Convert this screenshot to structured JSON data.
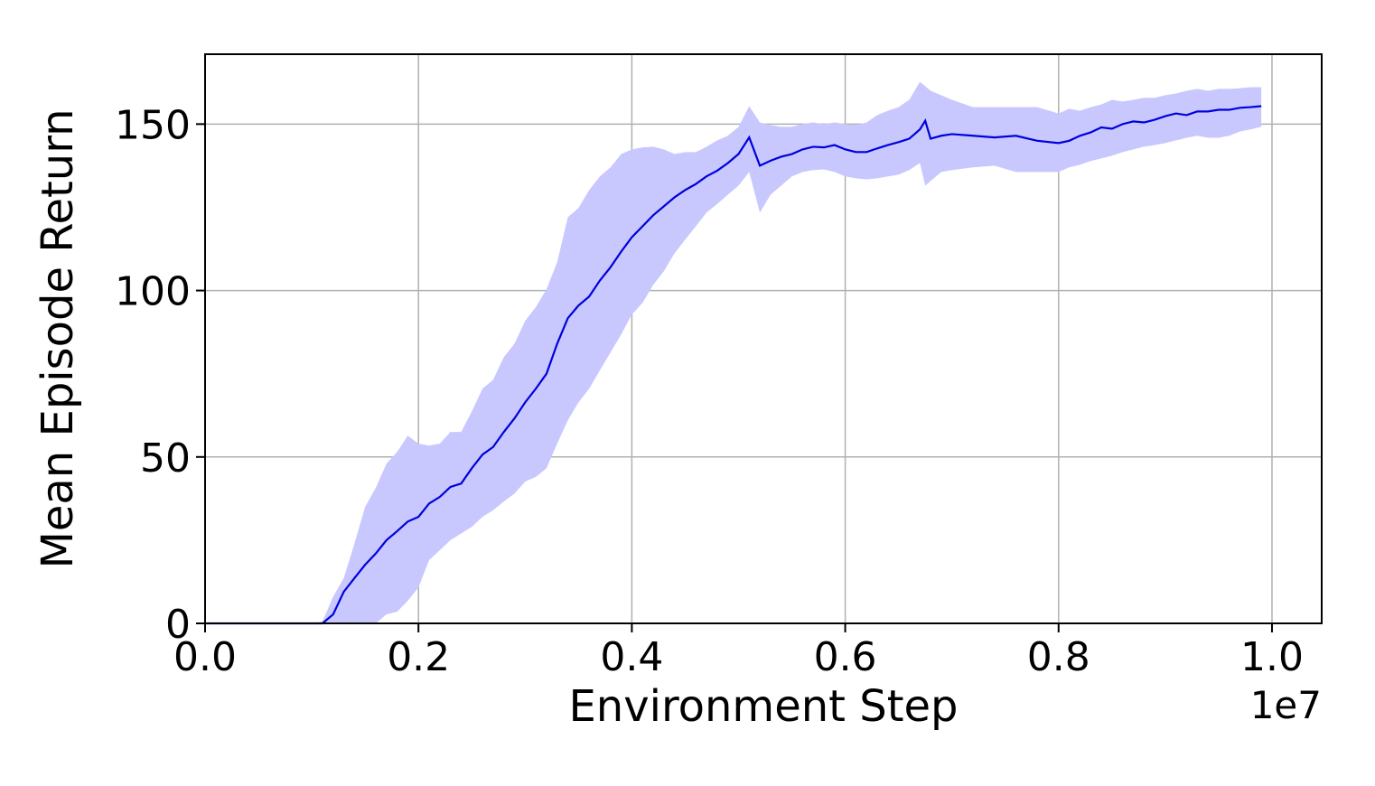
{
  "chart_data": {
    "type": "line",
    "xlabel": "Environment Step",
    "ylabel": "Mean Episode Return",
    "x_offset_label": "1e7",
    "xlim": [
      0,
      1.0466
    ],
    "ylim": [
      0,
      171
    ],
    "xticks": [
      {
        "value": 0,
        "label": "0.0"
      },
      0.2,
      0.4,
      0.6,
      0.8,
      {
        "value": 1,
        "label": "1.0"
      }
    ],
    "yticks": [
      0,
      50,
      100,
      150
    ],
    "grid": true,
    "x": [
      0,
      0.05,
      0.1,
      0.11,
      0.12,
      0.13,
      0.14,
      0.15,
      0.16,
      0.17,
      0.18,
      0.19,
      0.2,
      0.21,
      0.22,
      0.23,
      0.24,
      0.25,
      0.26,
      0.27,
      0.28,
      0.29,
      0.3,
      0.31,
      0.32,
      0.33,
      0.34,
      0.35,
      0.36,
      0.37,
      0.38,
      0.39,
      0.4,
      0.41,
      0.42,
      0.43,
      0.44,
      0.45,
      0.46,
      0.47,
      0.48,
      0.49,
      0.5,
      0.51,
      0.52,
      0.53,
      0.54,
      0.55,
      0.56,
      0.57,
      0.58,
      0.59,
      0.6,
      0.61,
      0.62,
      0.63,
      0.64,
      0.65,
      0.66,
      0.67,
      0.675,
      0.68,
      0.69,
      0.7,
      0.72,
      0.74,
      0.76,
      0.78,
      0.8,
      0.81,
      0.82,
      0.83,
      0.84,
      0.85,
      0.86,
      0.87,
      0.88,
      0.89,
      0.9,
      0.91,
      0.92,
      0.93,
      0.94,
      0.95,
      0.96,
      0.97,
      0.98,
      0.99
    ],
    "series": [
      {
        "color": "#0000dd",
        "values": [
          0,
          0,
          0,
          0,
          2.7,
          9.5,
          13.6,
          17.6,
          21,
          25,
          27.7,
          30.6,
          32,
          36,
          38,
          41,
          42,
          46.6,
          50.7,
          53,
          57.5,
          61.6,
          66.4,
          70.5,
          75,
          84,
          91.7,
          95.5,
          98.2,
          103,
          107,
          111.7,
          116,
          119.3,
          122.6,
          125.3,
          128,
          130.2,
          132,
          134.3,
          136,
          138.3,
          141,
          146,
          137.5,
          139,
          140.2,
          141,
          142.4,
          143.2,
          143,
          143.7,
          142.4,
          141.6,
          141.6,
          142.7,
          143.7,
          144.6,
          145.6,
          148.4,
          151,
          145.6,
          146.5,
          147,
          146.5,
          146,
          146.5,
          145,
          144.3,
          145,
          146.5,
          147.5,
          149,
          148.6,
          150,
          150.8,
          150.5,
          151.3,
          152.4,
          153.2,
          152.7,
          153.8,
          153.8,
          154.3,
          154.3,
          154.9,
          155.1,
          155.4
        ]
      }
    ],
    "band": {
      "color": "#c8c8ff",
      "lower": [
        0,
        0,
        0,
        0,
        0,
        0,
        0,
        0,
        0,
        2.7,
        3.5,
        6.8,
        10.8,
        19,
        22,
        25,
        27,
        29,
        32,
        34,
        36.6,
        39,
        42.6,
        44,
        46.6,
        54,
        61,
        66.4,
        70.5,
        76,
        81.4,
        86.8,
        92.8,
        96.3,
        101.7,
        105.8,
        111.2,
        115.3,
        119.3,
        123.4,
        126,
        128.8,
        131.5,
        135.6,
        123.4,
        128.8,
        131.5,
        134.3,
        135.6,
        136.2,
        136.4,
        135.6,
        134.3,
        133.7,
        133.4,
        133.7,
        134.3,
        134.8,
        136.2,
        138.3,
        131.5,
        132.9,
        135.6,
        136.2,
        137,
        137.5,
        135.6,
        135.6,
        135.6,
        137,
        137.8,
        138.9,
        139.7,
        140.5,
        141.6,
        142.4,
        143.2,
        143.7,
        144.3,
        145.1,
        145.9,
        146.5,
        145.9,
        145.9,
        146.5,
        147.8,
        148.4,
        149.2
      ],
      "upper": [
        0,
        0,
        0,
        0.5,
        8,
        13.6,
        24,
        35,
        40.7,
        48,
        51.5,
        56.4,
        54,
        53.4,
        54,
        57.5,
        57.5,
        63.7,
        70.5,
        73.2,
        80,
        84,
        90.9,
        95,
        100.4,
        108.5,
        122,
        124.8,
        130.2,
        134.3,
        137,
        141,
        142.4,
        143,
        143.2,
        142.4,
        141,
        141.6,
        141.6,
        143.2,
        145.1,
        146.5,
        149.2,
        155.4,
        150.5,
        149.7,
        149.2,
        149.2,
        150,
        150.5,
        150,
        150.5,
        150,
        149.7,
        150.5,
        152.7,
        154,
        155.1,
        157.3,
        162.7,
        161.4,
        160,
        158.7,
        157.3,
        155.1,
        155.1,
        155.1,
        155.1,
        153.2,
        154.6,
        154,
        155.1,
        155.9,
        157.3,
        156.8,
        157.3,
        157.9,
        157.9,
        158.7,
        159.2,
        160,
        160.6,
        160,
        160.6,
        160.6,
        160.8,
        161.1,
        161.1
      ]
    }
  }
}
